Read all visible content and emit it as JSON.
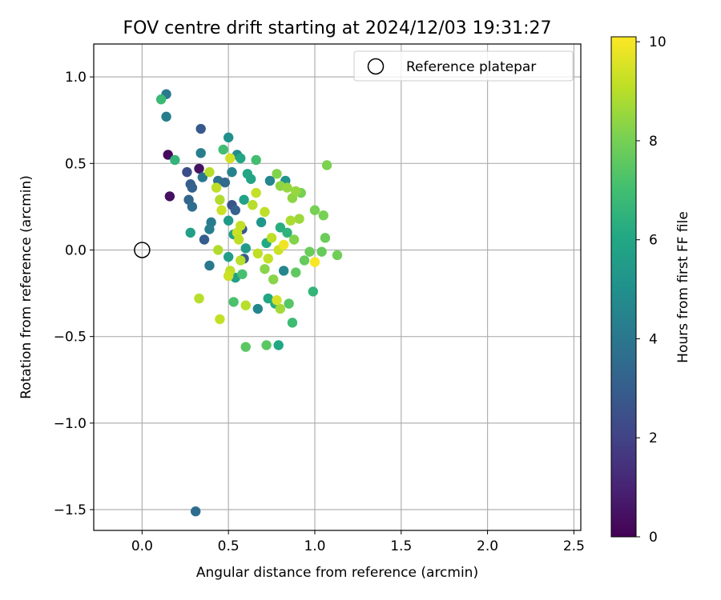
{
  "chart_data": {
    "type": "scatter",
    "title": "FOV centre drift starting at 2024/12/03 19:31:27",
    "xlabel": "Angular distance from reference (arcmin)",
    "ylabel": "Rotation from reference (arcmin)",
    "xlim": [
      -0.28,
      2.54
    ],
    "ylim": [
      -1.62,
      1.19
    ],
    "xticks": [
      0.0,
      0.5,
      1.0,
      1.5,
      2.0,
      2.5
    ],
    "xtick_labels": [
      "0.0",
      "0.5",
      "1.0",
      "1.5",
      "2.0",
      "2.5"
    ],
    "yticks": [
      -1.5,
      -1.0,
      -0.5,
      0.0,
      0.5,
      1.0
    ],
    "ytick_labels": [
      "−1.5",
      "−1.0",
      "−0.5",
      "0.0",
      "0.5",
      "1.0"
    ],
    "grid": true,
    "legend": {
      "position": "upper right",
      "entries": [
        "Reference platepar"
      ]
    },
    "reference_point": {
      "x": 0.0,
      "y": 0.0
    },
    "colorbar": {
      "label": "Hours from first FF file",
      "colormap": "viridis",
      "range": [
        0,
        10.1
      ],
      "ticks": [
        0,
        2,
        4,
        6,
        8,
        10
      ],
      "tick_labels": [
        "0",
        "2",
        "4",
        "6",
        "8",
        "10"
      ]
    },
    "points": [
      {
        "x": 0.15,
        "y": 0.55,
        "h": 0.3
      },
      {
        "x": 0.16,
        "y": 0.31,
        "h": 0.4
      },
      {
        "x": 0.33,
        "y": 0.47,
        "h": 0.5
      },
      {
        "x": 0.26,
        "y": 0.45,
        "h": 2.4
      },
      {
        "x": 0.34,
        "y": 0.7,
        "h": 2.8
      },
      {
        "x": 0.28,
        "y": 0.38,
        "h": 3.0
      },
      {
        "x": 0.29,
        "y": 0.36,
        "h": 3.1
      },
      {
        "x": 0.27,
        "y": 0.29,
        "h": 3.3
      },
      {
        "x": 0.29,
        "y": 0.25,
        "h": 3.6
      },
      {
        "x": 0.36,
        "y": 0.06,
        "h": 3.0
      },
      {
        "x": 0.39,
        "y": -0.09,
        "h": 4.0
      },
      {
        "x": 0.4,
        "y": 0.16,
        "h": 4.2
      },
      {
        "x": 0.39,
        "y": 0.12,
        "h": 4.3
      },
      {
        "x": 0.35,
        "y": 0.42,
        "h": 4.0
      },
      {
        "x": 0.34,
        "y": 0.56,
        "h": 4.3
      },
      {
        "x": 0.14,
        "y": 0.9,
        "h": 4.1
      },
      {
        "x": 0.14,
        "y": 0.77,
        "h": 4.3
      },
      {
        "x": 0.31,
        "y": -1.51,
        "h": 3.6
      },
      {
        "x": 0.44,
        "y": 0.4,
        "h": 3.8
      },
      {
        "x": 0.48,
        "y": 0.39,
        "h": 3.5
      },
      {
        "x": 0.52,
        "y": 0.26,
        "h": 2.6
      },
      {
        "x": 0.54,
        "y": 0.23,
        "h": 3.2
      },
      {
        "x": 0.58,
        "y": 0.12,
        "h": 2.8
      },
      {
        "x": 0.59,
        "y": -0.05,
        "h": 3.0
      },
      {
        "x": 0.52,
        "y": 0.45,
        "h": 4.5
      },
      {
        "x": 0.55,
        "y": 0.55,
        "h": 4.8
      },
      {
        "x": 0.5,
        "y": 0.65,
        "h": 5.0
      },
      {
        "x": 0.67,
        "y": -0.34,
        "h": 4.6
      },
      {
        "x": 0.82,
        "y": -0.12,
        "h": 4.6
      },
      {
        "x": 0.74,
        "y": 0.4,
        "h": 4.6
      },
      {
        "x": 0.83,
        "y": 0.4,
        "h": 5.2
      },
      {
        "x": 0.69,
        "y": 0.16,
        "h": 5.3
      },
      {
        "x": 0.5,
        "y": 0.17,
        "h": 5.4
      },
      {
        "x": 0.6,
        "y": 0.01,
        "h": 5.5
      },
      {
        "x": 0.5,
        "y": -0.04,
        "h": 5.6
      },
      {
        "x": 0.54,
        "y": -0.16,
        "h": 5.7
      },
      {
        "x": 0.28,
        "y": 0.1,
        "h": 5.7
      },
      {
        "x": 0.53,
        "y": 0.09,
        "h": 5.8
      },
      {
        "x": 0.59,
        "y": 0.29,
        "h": 5.8
      },
      {
        "x": 0.61,
        "y": 0.44,
        "h": 6.0
      },
      {
        "x": 0.63,
        "y": 0.41,
        "h": 5.9
      },
      {
        "x": 0.57,
        "y": 0.53,
        "h": 6.0
      },
      {
        "x": 0.72,
        "y": 0.04,
        "h": 6.1
      },
      {
        "x": 0.73,
        "y": -0.28,
        "h": 6.0
      },
      {
        "x": 0.79,
        "y": -0.55,
        "h": 6.0
      },
      {
        "x": 0.77,
        "y": -0.31,
        "h": 6.3
      },
      {
        "x": 0.8,
        "y": 0.13,
        "h": 6.3
      },
      {
        "x": 0.84,
        "y": 0.1,
        "h": 6.5
      },
      {
        "x": 0.99,
        "y": -0.24,
        "h": 6.6
      },
      {
        "x": 0.87,
        "y": -0.42,
        "h": 6.9
      },
      {
        "x": 0.19,
        "y": 0.52,
        "h": 6.6
      },
      {
        "x": 0.11,
        "y": 0.87,
        "h": 6.8
      },
      {
        "x": 0.47,
        "y": 0.58,
        "h": 7.0
      },
      {
        "x": 0.66,
        "y": 0.52,
        "h": 7.0
      },
      {
        "x": 0.58,
        "y": -0.14,
        "h": 7.1
      },
      {
        "x": 0.53,
        "y": -0.3,
        "h": 7.2
      },
      {
        "x": 0.6,
        "y": -0.56,
        "h": 7.5
      },
      {
        "x": 0.72,
        "y": -0.55,
        "h": 7.5
      },
      {
        "x": 0.85,
        "y": -0.31,
        "h": 7.4
      },
      {
        "x": 0.89,
        "y": -0.13,
        "h": 7.6
      },
      {
        "x": 0.94,
        "y": -0.06,
        "h": 7.7
      },
      {
        "x": 0.97,
        "y": -0.01,
        "h": 7.8
      },
      {
        "x": 1.04,
        "y": -0.01,
        "h": 7.7
      },
      {
        "x": 1.13,
        "y": -0.03,
        "h": 7.9
      },
      {
        "x": 1.06,
        "y": 0.07,
        "h": 7.8
      },
      {
        "x": 1.05,
        "y": 0.2,
        "h": 8.0
      },
      {
        "x": 1.07,
        "y": 0.49,
        "h": 8.1
      },
      {
        "x": 1.0,
        "y": 0.23,
        "h": 8.0
      },
      {
        "x": 0.92,
        "y": 0.33,
        "h": 8.0
      },
      {
        "x": 0.88,
        "y": 0.06,
        "h": 8.2
      },
      {
        "x": 0.71,
        "y": -0.11,
        "h": 8.3
      },
      {
        "x": 0.76,
        "y": -0.17,
        "h": 8.3
      },
      {
        "x": 0.78,
        "y": 0.44,
        "h": 8.2
      },
      {
        "x": 0.8,
        "y": 0.37,
        "h": 8.4
      },
      {
        "x": 0.84,
        "y": 0.36,
        "h": 8.5
      },
      {
        "x": 0.87,
        "y": 0.3,
        "h": 8.4
      },
      {
        "x": 0.89,
        "y": 0.34,
        "h": 8.5
      },
      {
        "x": 0.91,
        "y": 0.18,
        "h": 8.6
      },
      {
        "x": 0.86,
        "y": 0.17,
        "h": 8.8
      },
      {
        "x": 0.8,
        "y": -0.34,
        "h": 8.7
      },
      {
        "x": 0.6,
        "y": -0.32,
        "h": 9.0
      },
      {
        "x": 0.45,
        "y": -0.4,
        "h": 9.2
      },
      {
        "x": 0.33,
        "y": -0.28,
        "h": 9.0
      },
      {
        "x": 0.44,
        "y": 0.0,
        "h": 8.9
      },
      {
        "x": 0.39,
        "y": 0.45,
        "h": 9.0
      },
      {
        "x": 0.43,
        "y": 0.36,
        "h": 9.1
      },
      {
        "x": 0.45,
        "y": 0.29,
        "h": 8.9
      },
      {
        "x": 0.46,
        "y": 0.23,
        "h": 9.3
      },
      {
        "x": 0.51,
        "y": 0.53,
        "h": 9.4
      },
      {
        "x": 0.55,
        "y": 0.1,
        "h": 9.3
      },
      {
        "x": 0.56,
        "y": 0.06,
        "h": 9.1
      },
      {
        "x": 0.57,
        "y": 0.14,
        "h": 9.2
      },
      {
        "x": 0.51,
        "y": -0.12,
        "h": 9.1
      },
      {
        "x": 0.5,
        "y": -0.15,
        "h": 9.3
      },
      {
        "x": 0.57,
        "y": -0.06,
        "h": 9.0
      },
      {
        "x": 0.64,
        "y": 0.26,
        "h": 9.0
      },
      {
        "x": 0.66,
        "y": 0.33,
        "h": 9.2
      },
      {
        "x": 0.67,
        "y": -0.02,
        "h": 9.1
      },
      {
        "x": 0.71,
        "y": 0.22,
        "h": 9.1
      },
      {
        "x": 0.73,
        "y": -0.05,
        "h": 9.2
      },
      {
        "x": 0.75,
        "y": 0.07,
        "h": 9.1
      },
      {
        "x": 0.79,
        "y": 0.0,
        "h": 9.3
      },
      {
        "x": 0.78,
        "y": -0.29,
        "h": 9.5
      },
      {
        "x": 0.82,
        "y": 0.03,
        "h": 9.9
      },
      {
        "x": 1.0,
        "y": -0.07,
        "h": 10.0
      }
    ]
  }
}
